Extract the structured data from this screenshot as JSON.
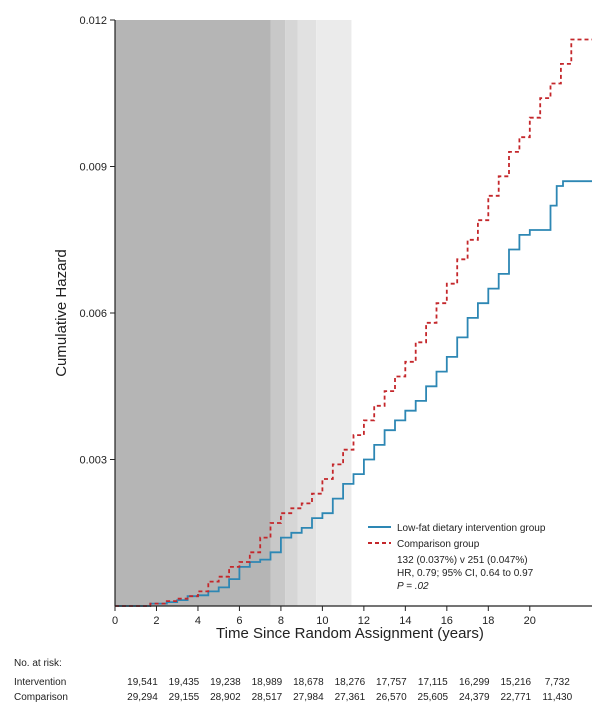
{
  "chart_data": {
    "type": "line",
    "xlabel": "Time Since Random Assignment (years)",
    "ylabel": "Cumulative Hazard",
    "xlim": [
      0,
      23
    ],
    "ylim": [
      0,
      0.012
    ],
    "xticks": [
      0,
      2,
      4,
      6,
      8,
      10,
      12,
      14,
      16,
      18,
      20
    ],
    "yticks": [
      "0.003",
      "0.006",
      "0.009",
      "0.012"
    ],
    "shaded_regions": [
      {
        "start": 0,
        "end": 7.5,
        "color": "#b5b5b5"
      },
      {
        "start": 7.5,
        "end": 8.2,
        "color": "#c8c8c8"
      },
      {
        "start": 8.2,
        "end": 8.8,
        "color": "#d6d6d6"
      },
      {
        "start": 8.8,
        "end": 9.7,
        "color": "#e1e1e1"
      },
      {
        "start": 9.7,
        "end": 11.4,
        "color": "#ebebeb"
      }
    ],
    "series": [
      {
        "name": "Low-fat dietary intervention group",
        "color": "#2d87b4",
        "dash": "solid",
        "x": [
          0,
          1,
          1.7,
          2,
          2.5,
          3,
          3.5,
          4,
          4.5,
          5,
          5.5,
          6,
          6.5,
          7,
          7.5,
          8,
          8.5,
          9,
          9.5,
          10,
          10.5,
          11,
          11.5,
          12,
          12.5,
          13,
          13.5,
          14,
          14.5,
          15,
          15.5,
          16,
          16.5,
          17,
          17.5,
          18,
          18.5,
          19,
          19.5,
          20,
          20.5,
          21,
          21.3,
          21.6,
          23
        ],
        "y": [
          0,
          0,
          5e-05,
          5e-05,
          8e-05,
          0.00012,
          0.0002,
          0.00022,
          0.0003,
          0.00038,
          0.00055,
          0.0008,
          0.0009,
          0.00095,
          0.0011,
          0.0014,
          0.0015,
          0.0016,
          0.0018,
          0.0019,
          0.0022,
          0.0025,
          0.0027,
          0.003,
          0.0033,
          0.0036,
          0.0038,
          0.004,
          0.0042,
          0.0045,
          0.0048,
          0.0051,
          0.0055,
          0.0059,
          0.0062,
          0.0065,
          0.0068,
          0.0073,
          0.0076,
          0.0077,
          0.0077,
          0.0082,
          0.0086,
          0.0087,
          0.0087
        ]
      },
      {
        "name": "Comparison group",
        "color": "#c4272b",
        "dash": "dashed",
        "x": [
          0,
          1,
          1.7,
          2,
          2.5,
          3,
          3.5,
          4,
          4.5,
          5,
          5.5,
          6,
          6.5,
          7,
          7.5,
          8,
          8.5,
          9,
          9.5,
          10,
          10.5,
          11,
          11.5,
          12,
          12.5,
          13,
          13.5,
          14,
          14.5,
          15,
          15.5,
          16,
          16.5,
          17,
          17.5,
          18,
          18.5,
          19,
          19.5,
          20,
          20.5,
          21,
          21.5,
          22,
          23
        ],
        "y": [
          0,
          0,
          5e-05,
          5e-05,
          0.0001,
          0.00015,
          0.0002,
          0.0003,
          0.0005,
          0.0006,
          0.0008,
          0.0009,
          0.0011,
          0.0014,
          0.0017,
          0.0019,
          0.002,
          0.0021,
          0.0023,
          0.0026,
          0.0029,
          0.0032,
          0.0035,
          0.0038,
          0.0041,
          0.0044,
          0.0047,
          0.005,
          0.0054,
          0.0058,
          0.0062,
          0.0066,
          0.0071,
          0.0075,
          0.0079,
          0.0084,
          0.0088,
          0.0093,
          0.0096,
          0.01,
          0.0104,
          0.0107,
          0.0111,
          0.0116,
          0.0116
        ]
      }
    ],
    "legend": {
      "entries": [
        "Low-fat dietary intervention group",
        "Comparison group"
      ],
      "stats": [
        "132 (0.037%) v 251 (0.047%)",
        "HR, 0.79; 95% CI, 0.64 to 0.97",
        "P = .02"
      ]
    },
    "risk_table": {
      "title": "No. at risk:",
      "rows": [
        {
          "label": "Intervention",
          "values": [
            "19,541",
            "19,435",
            "19,238",
            "18,989",
            "18,678",
            "18,276",
            "17,757",
            "17,115",
            "16,299",
            "15,216",
            "7,732"
          ]
        },
        {
          "label": "Comparison",
          "values": [
            "29,294",
            "29,155",
            "28,902",
            "28,517",
            "27,984",
            "27,361",
            "26,570",
            "25,605",
            "24,379",
            "22,771",
            "11,430"
          ]
        }
      ]
    }
  }
}
